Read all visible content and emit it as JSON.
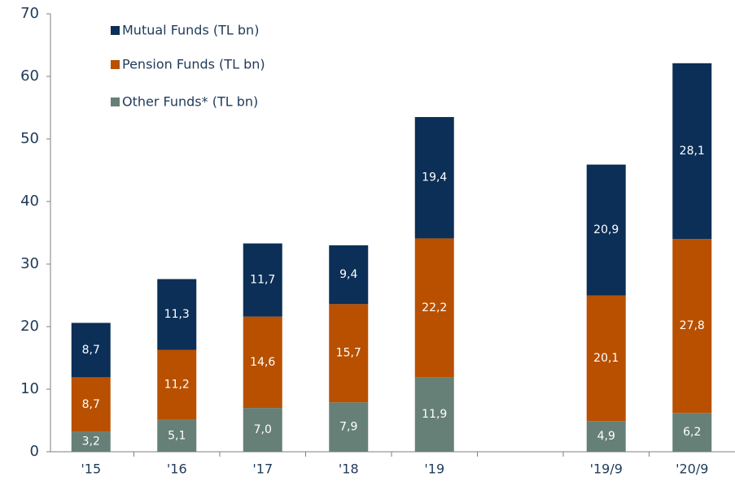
{
  "chart_data": {
    "type": "stacked_bar",
    "categories": [
      "'15",
      "'16",
      "'17",
      "'18",
      "'19",
      null,
      "'19/9",
      "'20/9"
    ],
    "series": [
      {
        "name": "Mutual Funds (TL bn)",
        "color": "#0b2f57",
        "values": [
          8.7,
          11.3,
          11.7,
          9.4,
          19.4,
          null,
          20.9,
          28.1
        ],
        "value_labels": [
          "8,7",
          "11,3",
          "11,7",
          "9,4",
          "19,4",
          null,
          "20,9",
          "28,1"
        ]
      },
      {
        "name": "Pension Funds (TL bn)",
        "color": "#b85000",
        "values": [
          8.7,
          11.2,
          14.6,
          15.7,
          22.2,
          null,
          20.1,
          27.8
        ],
        "value_labels": [
          "8,7",
          "11,2",
          "14,6",
          "15,7",
          "22,2",
          null,
          "20,1",
          "27,8"
        ]
      },
      {
        "name": "Other Funds* (TL bn)",
        "color": "#668077",
        "values": [
          3.2,
          5.1,
          7.0,
          7.9,
          11.9,
          null,
          4.9,
          6.2
        ],
        "value_labels": [
          "3,2",
          "5,1",
          "7,0",
          "7,9",
          "11,9",
          null,
          "4,9",
          "6,2"
        ]
      }
    ],
    "ylim": [
      0,
      70
    ],
    "yticks": [
      0,
      10,
      20,
      30,
      40,
      50,
      60,
      70
    ],
    "legend": "top-left"
  }
}
